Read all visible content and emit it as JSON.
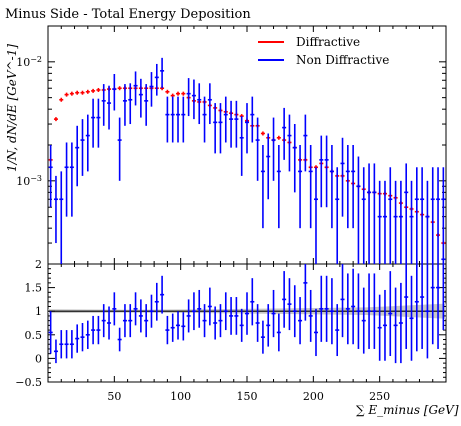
{
  "chart_data": {
    "type": "scatter",
    "title": "Minus Side - Total Energy Deposition",
    "xlabel": "∑ E_minus [GeV]",
    "ylabel": "1/N, dN/dE [GeV^-1]",
    "xlim": [
      0,
      300
    ],
    "ylim": [
      0.0002,
      0.02
    ],
    "ratio_ylim": [
      -0.5,
      2
    ],
    "x_ticks": [
      50,
      100,
      150,
      200,
      250
    ],
    "y_log_scale": true,
    "y_major_tick_labels": [
      "10^-3",
      "10^-2"
    ],
    "ratio_ticks": [
      -0.5,
      0,
      0.5,
      1,
      1.5,
      2
    ],
    "legend_position": "top-right",
    "series": [
      {
        "name": "Diffractive",
        "color": "#ff0000",
        "bin_width": 4,
        "x": [
          2,
          6,
          10,
          14,
          18,
          22,
          26,
          30,
          34,
          38,
          42,
          46,
          50,
          54,
          58,
          62,
          66,
          70,
          74,
          78,
          82,
          86,
          90,
          94,
          98,
          102,
          106,
          110,
          114,
          118,
          122,
          126,
          130,
          134,
          138,
          142,
          146,
          150,
          154,
          158,
          162,
          166,
          170,
          174,
          178,
          182,
          186,
          190,
          194,
          198,
          202,
          206,
          210,
          214,
          218,
          222,
          226,
          230,
          234,
          238,
          242,
          246,
          250,
          254,
          258,
          262,
          266,
          270,
          274,
          278,
          282,
          286,
          290,
          294,
          298
        ],
        "y": [
          0.0015,
          0.0033,
          0.0048,
          0.0053,
          0.0054,
          0.0055,
          0.0055,
          0.0056,
          0.0057,
          0.0058,
          0.0058,
          0.0059,
          0.0059,
          0.006,
          0.006,
          0.006,
          0.006,
          0.006,
          0.006,
          0.006,
          0.006,
          0.006,
          0.0056,
          0.0052,
          0.0054,
          0.0054,
          0.005,
          0.0047,
          0.0046,
          0.0046,
          0.0043,
          0.0041,
          0.0039,
          0.0038,
          0.0037,
          0.0036,
          0.0035,
          0.0032,
          0.0029,
          0.0029,
          0.0025,
          0.0023,
          0.0022,
          0.0023,
          0.0022,
          0.0021,
          0.0019,
          0.0015,
          0.0015,
          0.0013,
          0.0013,
          0.0014,
          0.0013,
          0.0012,
          0.0011,
          0.0011,
          0.001,
          0.00095,
          0.0009,
          0.00085,
          0.0008,
          0.0008,
          0.00078,
          0.00078,
          0.00075,
          0.00072,
          0.00065,
          0.0006,
          0.00058,
          0.00055,
          0.00052,
          0.0005,
          0.00045,
          0.00035,
          0.0003
        ]
      },
      {
        "name": "Non Diffractive",
        "color": "#0000ff",
        "x": [
          2,
          6,
          10,
          14,
          18,
          22,
          26,
          30,
          34,
          38,
          42,
          46,
          50,
          54,
          58,
          62,
          66,
          70,
          74,
          78,
          82,
          86,
          90,
          94,
          98,
          102,
          106,
          110,
          114,
          118,
          122,
          126,
          130,
          134,
          138,
          142,
          146,
          150,
          154,
          158,
          162,
          166,
          170,
          174,
          178,
          182,
          186,
          190,
          194,
          198,
          202,
          206,
          210,
          214,
          218,
          222,
          226,
          230,
          234,
          238,
          242,
          246,
          250,
          254,
          258,
          262,
          266,
          270,
          274,
          278,
          282,
          286,
          290,
          294,
          298
        ],
        "y": [
          0.0013,
          0.0007,
          0.0007,
          0.0013,
          0.0013,
          0.0019,
          0.0022,
          0.0024,
          0.0034,
          0.0034,
          0.0047,
          0.0045,
          0.0059,
          0.0022,
          0.0047,
          0.0048,
          0.0063,
          0.0053,
          0.0047,
          0.0062,
          0.0074,
          0.0084,
          0.0036,
          0.0036,
          0.0036,
          0.0036,
          0.0054,
          0.0052,
          0.0048,
          0.0036,
          0.0048,
          0.0031,
          0.0031,
          0.0036,
          0.0033,
          0.0033,
          0.0023,
          0.0031,
          0.0036,
          0.0022,
          0.0012,
          0.0016,
          0.0022,
          0.0012,
          0.0028,
          0.0024,
          0.0019,
          0.0012,
          0.0024,
          0.0012,
          0.0007,
          0.0015,
          0.0015,
          0.0012,
          0.0007,
          0.0014,
          0.0012,
          0.0012,
          0.0009,
          0.0007,
          0.0008,
          0.0008,
          0.0005,
          0.0005,
          0.0007,
          0.0005,
          0.0005,
          0.0008,
          0.0005,
          0.0007,
          0.0007,
          0.0005,
          0.0007,
          0.0007,
          0.0007
        ],
        "err": [
          0.0007,
          0.0004,
          0.0005,
          0.0008,
          0.0008,
          0.001,
          0.0011,
          0.0012,
          0.0015,
          0.0015,
          0.0018,
          0.0018,
          0.002,
          0.0012,
          0.0018,
          0.0018,
          0.002,
          0.0019,
          0.0018,
          0.002,
          0.0022,
          0.0024,
          0.0015,
          0.0015,
          0.0015,
          0.0015,
          0.0019,
          0.0019,
          0.0018,
          0.0015,
          0.0018,
          0.0014,
          0.0014,
          0.0015,
          0.0014,
          0.0014,
          0.0012,
          0.0014,
          0.0015,
          0.0012,
          0.0008,
          0.0009,
          0.0012,
          0.0008,
          0.0013,
          0.0012,
          0.0011,
          0.0008,
          0.0012,
          0.0008,
          0.0006,
          0.0009,
          0.0009,
          0.0008,
          0.0006,
          0.0009,
          0.0008,
          0.0008,
          0.0007,
          0.0006,
          0.0006,
          0.0006,
          0.0005,
          0.0005,
          0.0006,
          0.0005,
          0.0005,
          0.0006,
          0.0005,
          0.0006,
          0.0006,
          0.0005,
          0.0006,
          0.0006,
          0.0006
        ]
      }
    ],
    "ratio": {
      "band_color": "#c8c8c8",
      "band_x": [
        0,
        60,
        120,
        180,
        240,
        270,
        300
      ],
      "band_half_width": [
        0.04,
        0.03,
        0.04,
        0.06,
        0.08,
        0.12,
        0.16
      ],
      "x": [
        2,
        6,
        10,
        14,
        18,
        22,
        26,
        30,
        34,
        38,
        42,
        46,
        50,
        54,
        58,
        62,
        66,
        70,
        74,
        78,
        82,
        86,
        90,
        94,
        98,
        102,
        106,
        110,
        114,
        118,
        122,
        126,
        130,
        134,
        138,
        142,
        146,
        150,
        154,
        158,
        162,
        166,
        170,
        174,
        178,
        182,
        186,
        190,
        194,
        198,
        202,
        206,
        210,
        214,
        218,
        222,
        226,
        230,
        234,
        238,
        242,
        246,
        250,
        254,
        258,
        262,
        266,
        270,
        274,
        278,
        282,
        286,
        290,
        294,
        298
      ],
      "y": [
        0.55,
        0.15,
        0.3,
        0.3,
        0.3,
        0.42,
        0.45,
        0.5,
        0.6,
        0.6,
        0.8,
        0.75,
        1.05,
        0.4,
        0.8,
        0.8,
        1.05,
        0.9,
        0.8,
        1.0,
        1.2,
        1.35,
        0.6,
        0.65,
        0.7,
        0.68,
        0.9,
        1.0,
        1.05,
        0.8,
        1.1,
        0.75,
        0.8,
        1.0,
        0.9,
        0.9,
        0.7,
        0.95,
        1.2,
        0.75,
        0.45,
        0.7,
        0.95,
        0.55,
        1.25,
        1.15,
        1.0,
        0.8,
        1.6,
        0.9,
        0.55,
        1.05,
        1.05,
        1.0,
        0.6,
        1.25,
        1.05,
        1.1,
        1.0,
        0.8,
        1.0,
        1.0,
        0.65,
        0.7,
        0.95,
        0.7,
        0.75,
        1.3,
        0.85,
        1.2,
        1.3,
        1.0,
        1.5,
        1.5,
        2.1
      ],
      "err": [
        0.45,
        0.25,
        0.3,
        0.3,
        0.3,
        0.3,
        0.3,
        0.3,
        0.3,
        0.3,
        0.35,
        0.35,
        0.35,
        0.25,
        0.35,
        0.35,
        0.35,
        0.35,
        0.35,
        0.35,
        0.4,
        0.4,
        0.3,
        0.3,
        0.3,
        0.3,
        0.35,
        0.4,
        0.4,
        0.35,
        0.4,
        0.35,
        0.35,
        0.4,
        0.4,
        0.4,
        0.35,
        0.45,
        0.5,
        0.4,
        0.35,
        0.45,
        0.5,
        0.4,
        0.6,
        0.55,
        0.55,
        0.5,
        0.8,
        0.55,
        0.5,
        0.7,
        0.7,
        0.7,
        0.55,
        0.8,
        0.75,
        0.8,
        0.8,
        0.7,
        0.8,
        0.8,
        0.7,
        0.75,
        0.9,
        0.8,
        0.85,
        1.1,
        0.9,
        1.05,
        1.1,
        1.0,
        1.2,
        1.3,
        1.5
      ]
    }
  }
}
